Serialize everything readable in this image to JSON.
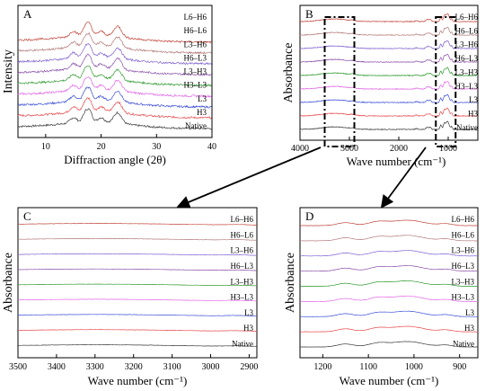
{
  "series_colors": {
    "Native": "#3a3a3a",
    "H3": "#e8474a",
    "L3": "#3b4fd6",
    "H3–L3": "#e066e6",
    "L3–H3": "#2f9a2f",
    "H6–L3": "#8a4fa8",
    "L3–H6": "#7f5fd0",
    "H6–L6": "#b47a7a",
    "L6–H6": "#c0463a"
  },
  "chart_data": [
    {
      "id": "A",
      "type": "line",
      "panel_label": "A",
      "xlabel": "Diffraction angle (2θ)",
      "ylabel": "Intensity",
      "xlim": [
        5,
        40
      ],
      "x_ticks": [
        "10",
        "20",
        "30",
        "40"
      ],
      "series": [
        {
          "name": "Native",
          "order": 0
        },
        {
          "name": "H3",
          "order": 1
        },
        {
          "name": "L3",
          "order": 2
        },
        {
          "name": "H3–L3",
          "order": 3
        },
        {
          "name": "L3–H3",
          "order": 4
        },
        {
          "name": "H6–L3",
          "order": 5
        },
        {
          "name": "L3–H6",
          "order": 6
        },
        {
          "name": "H6–L6",
          "order": 7
        },
        {
          "name": "L6–H6",
          "order": 8
        }
      ],
      "labels": [
        "L6–H6",
        "H6–L6",
        "L3–H6",
        "H6–L3",
        "L3–H3",
        "H3–L3",
        "L3",
        "H3",
        "Native"
      ],
      "peaks_2theta": [
        15.0,
        17.0,
        18.0,
        20.0,
        23.0
      ],
      "y_ticks_shown": false
    },
    {
      "id": "B",
      "type": "line",
      "panel_label": "B",
      "xlabel": "Wave number (cm⁻¹)",
      "ylabel": "Absorbance",
      "xlim": [
        4000,
        400
      ],
      "x_ticks": [
        "4000",
        "3000",
        "2000",
        "1000"
      ],
      "labels": [
        "L6–H6",
        "H6–L6",
        "L3–H6",
        "H6–L3",
        "L3–H3",
        "H3–L3",
        "L3",
        "H3",
        "Native"
      ],
      "highlight_ranges": [
        [
          3500,
          2900
        ],
        [
          1250,
          850
        ]
      ],
      "y_ticks_shown": false
    },
    {
      "id": "C",
      "type": "line",
      "panel_label": "C",
      "xlabel": "Wave number (cm⁻¹)",
      "ylabel": "Absorbance",
      "xlim": [
        3500,
        2880
      ],
      "x_ticks": [
        "3500",
        "3400",
        "3300",
        "3200",
        "3100",
        "3000",
        "2900"
      ],
      "labels": [
        "L6–H6",
        "H6–L6",
        "L3–H6",
        "H6–L3",
        "L3–H3",
        "H3–L3",
        "L3",
        "H3",
        "Native"
      ],
      "y_ticks_shown": false
    },
    {
      "id": "D",
      "type": "line",
      "panel_label": "D",
      "xlabel": "Wave number (cm⁻¹)",
      "ylabel": "Absorbance",
      "xlim": [
        1250,
        860
      ],
      "x_ticks": [
        "1200",
        "1100",
        "1000",
        "900"
      ],
      "labels": [
        "L6–H6",
        "H6–L6",
        "L3–H6",
        "H6–L3",
        "L3–H3",
        "H3–L3",
        "L3",
        "H3",
        "Native"
      ],
      "peaks_cm1": [
        1150,
        1080,
        1047,
        1022,
        995,
        930
      ],
      "y_ticks_shown": false
    }
  ]
}
